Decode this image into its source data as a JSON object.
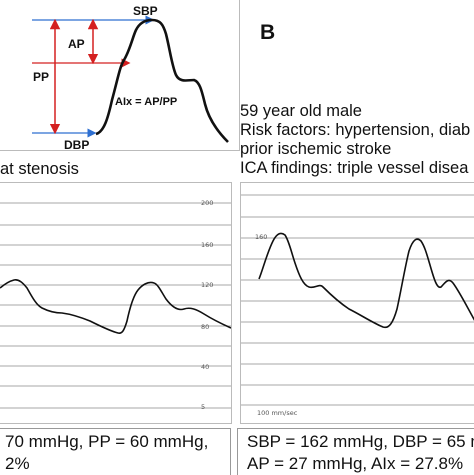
{
  "schematic": {
    "sbp_label": "SBP",
    "ap_label": "AP",
    "pp_label": "PP",
    "dbp_label": "DBP",
    "aix_formula": "AIx = AP/PP"
  },
  "panel_b": {
    "letter": "B",
    "info_lines": [
      "59 year old male",
      "Risk factors: hypertension, diab",
      "prior ischemic stroke",
      "ICA findings: triple vessel disea"
    ],
    "trace_footer": "100 mm/sec",
    "tick_label": "160",
    "measurements": {
      "line1": "SBP = 162 mmHg, DBP = 65 m",
      "line2": "AP = 27 mmHg, AIx = 27.8%"
    }
  },
  "panel_a": {
    "caption": "at stenosis",
    "tick_labels": [
      "200",
      "160",
      "120",
      "80",
      "40",
      "5"
    ],
    "measurements": {
      "line1": "70 mmHg, PP = 60 mmHg,",
      "line2": "2%"
    }
  },
  "colors": {
    "arrow_red": "#d42020",
    "arrow_blue": "#2e6fd1",
    "box_border": "#bbbbbb",
    "gridline": "#8a8a8a",
    "trace": "#111111"
  }
}
